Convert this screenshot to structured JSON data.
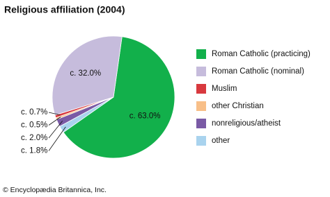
{
  "chart_data": {
    "type": "pie",
    "title": "Religious affiliation (2004)",
    "categories": [
      "Roman Catholic (practicing)",
      "Roman Catholic (nominal)",
      "Muslim",
      "other Christian",
      "nonreligious/atheist",
      "other"
    ],
    "values": [
      63.0,
      32.0,
      0.7,
      0.5,
      2.0,
      1.8
    ],
    "value_labels": [
      "c. 63.0%",
      "c. 32.0%",
      "c. 0.7%",
      "c. 0.5%",
      "c. 2.0%",
      "c. 1.8%"
    ],
    "colors": [
      "#12b04b",
      "#c6bcdc",
      "#d8393e",
      "#f8bf88",
      "#7a5aa5",
      "#a9d3ee"
    ],
    "slice_order": [
      0,
      5,
      4,
      3,
      2,
      1
    ],
    "credit": "© Encyclopædia Britannica, Inc."
  }
}
